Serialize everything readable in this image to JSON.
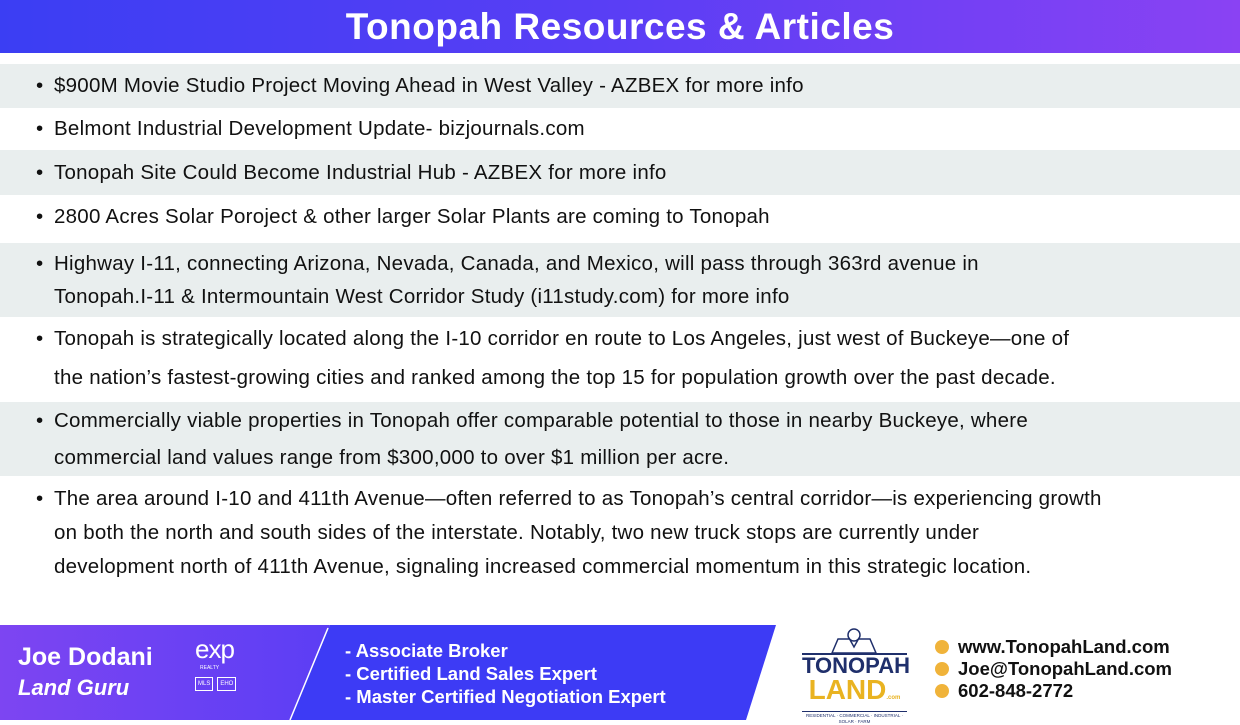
{
  "header": {
    "title": "Tonopah Resources & Articles"
  },
  "articles": [
    {
      "lines": [
        "$900M Movie Studio Project Moving Ahead in West Valley - AZBEX for more info"
      ]
    },
    {
      "lines": [
        "Belmont Industrial Development Update- bizjournals.com"
      ]
    },
    {
      "lines": [
        "Tonopah Site Could Become Industrial Hub - AZBEX for more info"
      ]
    },
    {
      "lines": [
        "2800 Acres Solar Poroject & other larger Solar Plants are coming to Tonopah"
      ]
    },
    {
      "lines": [
        "Highway I-11, connecting Arizona, Nevada, Canada, and Mexico, will pass through 363rd avenue in",
        "Tonopah.I-11 & Intermountain West Corridor Study (i11study.com) for more info"
      ]
    },
    {
      "lines": [
        "Tonopah is strategically located along the I-10 corridor en route to Los Angeles, just west of Buckeye—one of",
        "the nation’s fastest-growing cities and ranked among the top 15 for population growth over the past decade."
      ]
    },
    {
      "lines": [
        "Commercially viable properties in Tonopah offer comparable potential to those in nearby Buckeye, where",
        "commercial land values range from $300,000 to over $1 million per acre."
      ]
    },
    {
      "lines": [
        "The area around I-10 and 411th Avenue—often referred to as Tonopah’s central corridor—is experiencing growth",
        "on both the north and south sides of the interstate. Notably, two new truck stops are currently under",
        "development north of 411th Avenue, signaling increased commercial momentum in this strategic location."
      ]
    }
  ],
  "footer": {
    "name": "Joe Dodani",
    "title": "Land Guru",
    "brokerage": "exp",
    "brokerage_sub": "REALTY",
    "badges": [
      "MLS",
      "EHO"
    ],
    "credentials": [
      "- Associate Broker",
      "- Certified Land Sales Expert",
      "- Master Certified Negotiation Expert"
    ],
    "logo": {
      "top": "TONOPAH",
      "bottom": "LAND",
      "suffix": ".com",
      "tagline": "RESIDENTIAL · COMMERCIAL · INDUSTRIAL · SOLAR · FARM"
    },
    "contact": [
      {
        "icon": "phone-icon",
        "text": "www.TonopahLand.com"
      },
      {
        "icon": "globe-icon",
        "text": "Joe@TonopahLand.com"
      },
      {
        "icon": "mail-icon",
        "text": "602-848-2772"
      }
    ],
    "colors": {
      "purple": "#7a45f2",
      "blue": "#3d3bf5",
      "gold": "#f0b33a",
      "navy": "#1f2f6b"
    }
  }
}
